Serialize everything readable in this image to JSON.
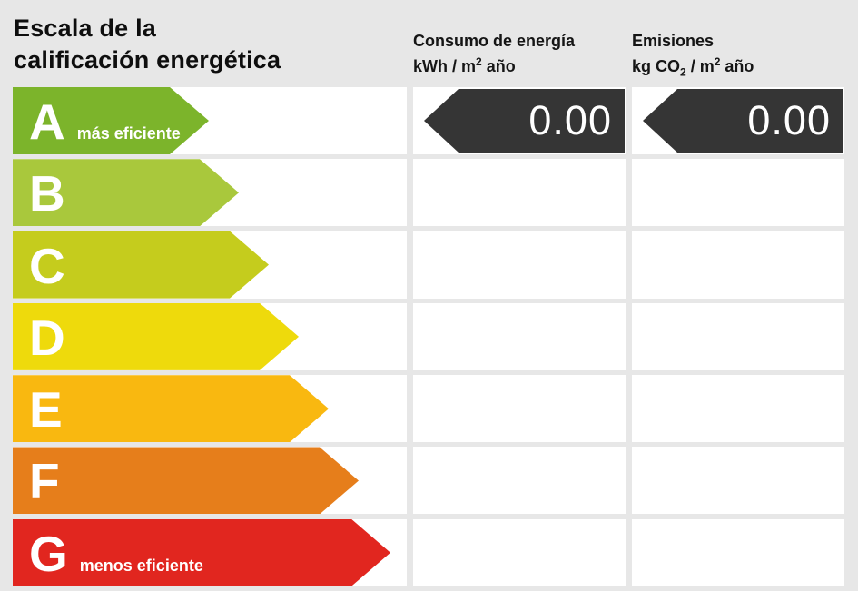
{
  "background": "#e7e7e7",
  "title": {
    "line1": "Escala de la",
    "line2": "calificación energética"
  },
  "columns": {
    "consumo": {
      "title": "Consumo de energía",
      "unit_prefix": "kWh / m",
      "unit_sup": "2",
      "unit_suffix": " año"
    },
    "emisiones": {
      "title": "Emisiones",
      "unit_prefix": "kg CO",
      "unit_sub": "2",
      "unit_mid": " / m",
      "unit_sup": "2",
      "unit_suffix": " año"
    }
  },
  "chart_data": {
    "type": "bar",
    "title": "Escala de la calificación energética",
    "categories": [
      "A",
      "B",
      "C",
      "D",
      "E",
      "F",
      "G"
    ],
    "series": [
      {
        "name": "Consumo de energía kWh/m2 año",
        "values": [
          0.0,
          null,
          null,
          null,
          null,
          null,
          null
        ]
      },
      {
        "name": "Emisiones kg CO2/m2 año",
        "values": [
          0.0,
          null,
          null,
          null,
          null,
          null,
          null
        ]
      }
    ],
    "annotations": [
      "más eficiente (A)",
      "menos eficiente (G)"
    ]
  },
  "scale": {
    "rows": [
      {
        "grade": "A",
        "note": "más eficiente",
        "color": "#7cb42b",
        "arrow_width": 216
      },
      {
        "grade": "B",
        "note": "",
        "color": "#a9c83c",
        "arrow_width": 249
      },
      {
        "grade": "C",
        "note": "",
        "color": "#c5cc1d",
        "arrow_width": 282
      },
      {
        "grade": "D",
        "note": "",
        "color": "#eeda0c",
        "arrow_width": 315
      },
      {
        "grade": "E",
        "note": "",
        "color": "#f9b810",
        "arrow_width": 348
      },
      {
        "grade": "F",
        "note": "",
        "color": "#e67e1b",
        "arrow_width": 381
      },
      {
        "grade": "G",
        "note": "menos eficiente",
        "color": "#e1261f",
        "arrow_width": 416
      }
    ]
  },
  "rating": {
    "grade": "A",
    "consumo_value": "0.00",
    "emisiones_value": "0.00",
    "badge_color": "#353535"
  }
}
